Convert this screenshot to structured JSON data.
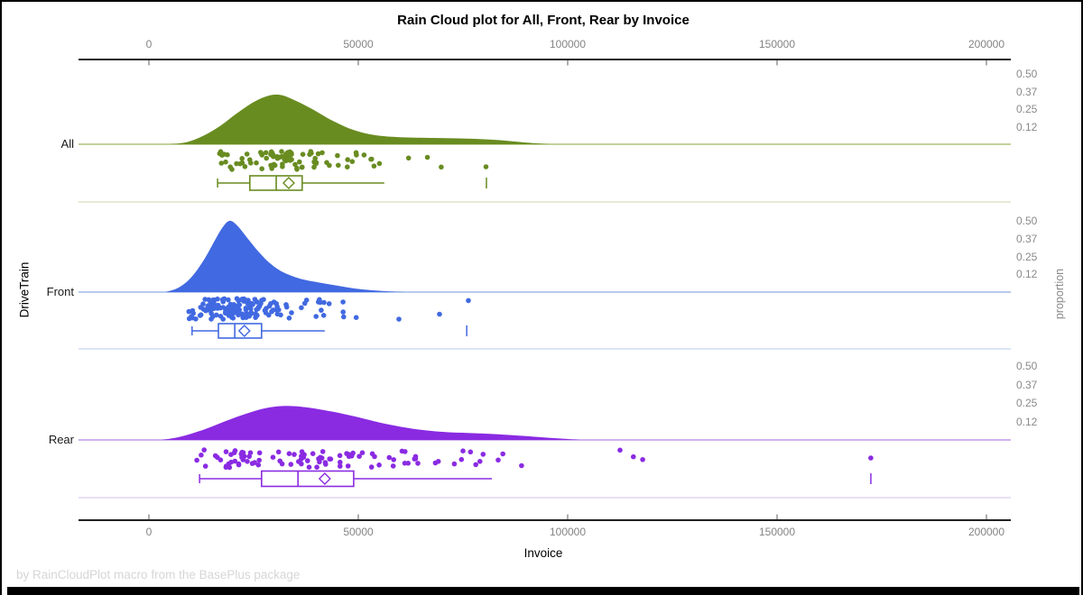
{
  "title": "Rain Cloud plot for All, Front, Rear by Invoice",
  "footer": "by RainCloudPlot macro from the BasePlus package",
  "chart_data": {
    "type": "raincloud",
    "title": "Rain Cloud plot for All, Front, Rear by Invoice",
    "xlabel": "Invoice",
    "ylabel": "DriveTrain",
    "y2label": "proportion",
    "xlim": [
      -17000,
      206000
    ],
    "x_ticks": [
      0,
      50000,
      100000,
      150000,
      200000
    ],
    "x_tick_labels": [
      "0",
      "50000",
      "100000",
      "150000",
      "200000"
    ],
    "proportion_tick_labels": [
      "0.50",
      "0.37",
      "0.25",
      "0.12"
    ],
    "proportion_tick_values": [
      0.5,
      0.375,
      0.25,
      0.125
    ],
    "legend": "none",
    "grid": false,
    "groups": [
      {
        "label": "All",
        "color": "#698C21",
        "baseline_color": "#AEC279",
        "separator_color": "#DCE4C6",
        "density": [
          [
            5000,
            0
          ],
          [
            9000,
            0.015
          ],
          [
            13000,
            0.06
          ],
          [
            17000,
            0.13
          ],
          [
            21000,
            0.22
          ],
          [
            25000,
            0.3
          ],
          [
            28500,
            0.345
          ],
          [
            31500,
            0.35
          ],
          [
            35000,
            0.31
          ],
          [
            39000,
            0.25
          ],
          [
            44000,
            0.165
          ],
          [
            49000,
            0.1
          ],
          [
            54000,
            0.065
          ],
          [
            60000,
            0.05
          ],
          [
            68000,
            0.045
          ],
          [
            76000,
            0.04
          ],
          [
            83000,
            0.03
          ],
          [
            90000,
            0.012
          ],
          [
            96000,
            0
          ]
        ],
        "box": {
          "whisker_low": 16400,
          "q1": 24100,
          "median": 30400,
          "mean": 33400,
          "q3": 36600,
          "whisker_high": 56200
        },
        "outlier_ticks": [
          80600
        ],
        "rain": {
          "count": 86,
          "min": 15200,
          "max": 60000,
          "seed": 3,
          "extra_points": [
            62000,
            66500,
            69800,
            80500
          ]
        }
      },
      {
        "label": "Front",
        "color": "#4169E1",
        "baseline_color": "#9FB9EA",
        "separator_color": "#CFDCF5",
        "density": [
          [
            4000,
            0
          ],
          [
            7000,
            0.03
          ],
          [
            10000,
            0.1
          ],
          [
            13000,
            0.22
          ],
          [
            15500,
            0.35
          ],
          [
            17500,
            0.45
          ],
          [
            19200,
            0.5
          ],
          [
            21000,
            0.47
          ],
          [
            23500,
            0.38
          ],
          [
            26000,
            0.29
          ],
          [
            29000,
            0.2
          ],
          [
            32000,
            0.14
          ],
          [
            36000,
            0.095
          ],
          [
            40000,
            0.07
          ],
          [
            45000,
            0.045
          ],
          [
            50000,
            0.022
          ],
          [
            56000,
            0.007
          ],
          [
            61000,
            0
          ]
        ],
        "box": {
          "whisker_low": 10300,
          "q1": 16600,
          "median": 20500,
          "mean": 22800,
          "q3": 26900,
          "whisker_high": 42000
        },
        "outlier_ticks": [
          75900
        ],
        "rain": {
          "count": 150,
          "min": 9200,
          "max": 47000,
          "seed": 7,
          "extra_points": [
            46500,
            49500,
            59700,
            69400,
            76300
          ]
        }
      },
      {
        "label": "Rear",
        "color": "#8A2BE2",
        "baseline_color": "#C29BEA",
        "separator_color": "#E2D3F6",
        "density": [
          [
            3000,
            0
          ],
          [
            7000,
            0.018
          ],
          [
            11000,
            0.05
          ],
          [
            15000,
            0.09
          ],
          [
            19000,
            0.135
          ],
          [
            23000,
            0.175
          ],
          [
            27000,
            0.21
          ],
          [
            31000,
            0.228
          ],
          [
            35000,
            0.228
          ],
          [
            39000,
            0.215
          ],
          [
            44000,
            0.19
          ],
          [
            49000,
            0.16
          ],
          [
            54000,
            0.125
          ],
          [
            59000,
            0.095
          ],
          [
            64000,
            0.072
          ],
          [
            70000,
            0.055
          ],
          [
            76000,
            0.047
          ],
          [
            82000,
            0.04
          ],
          [
            88000,
            0.03
          ],
          [
            93000,
            0.02
          ],
          [
            98000,
            0.01
          ],
          [
            103000,
            0
          ]
        ],
        "box": {
          "whisker_low": 12100,
          "q1": 26900,
          "median": 35600,
          "mean": 42000,
          "q3": 48900,
          "whisker_high": 81900
        },
        "outlier_ticks": [
          172400
        ],
        "rain": {
          "count": 98,
          "min": 8800,
          "max": 100000,
          "seed": 13,
          "extra_points": [
            112500,
            115700,
            117900,
            172400
          ]
        }
      }
    ]
  }
}
